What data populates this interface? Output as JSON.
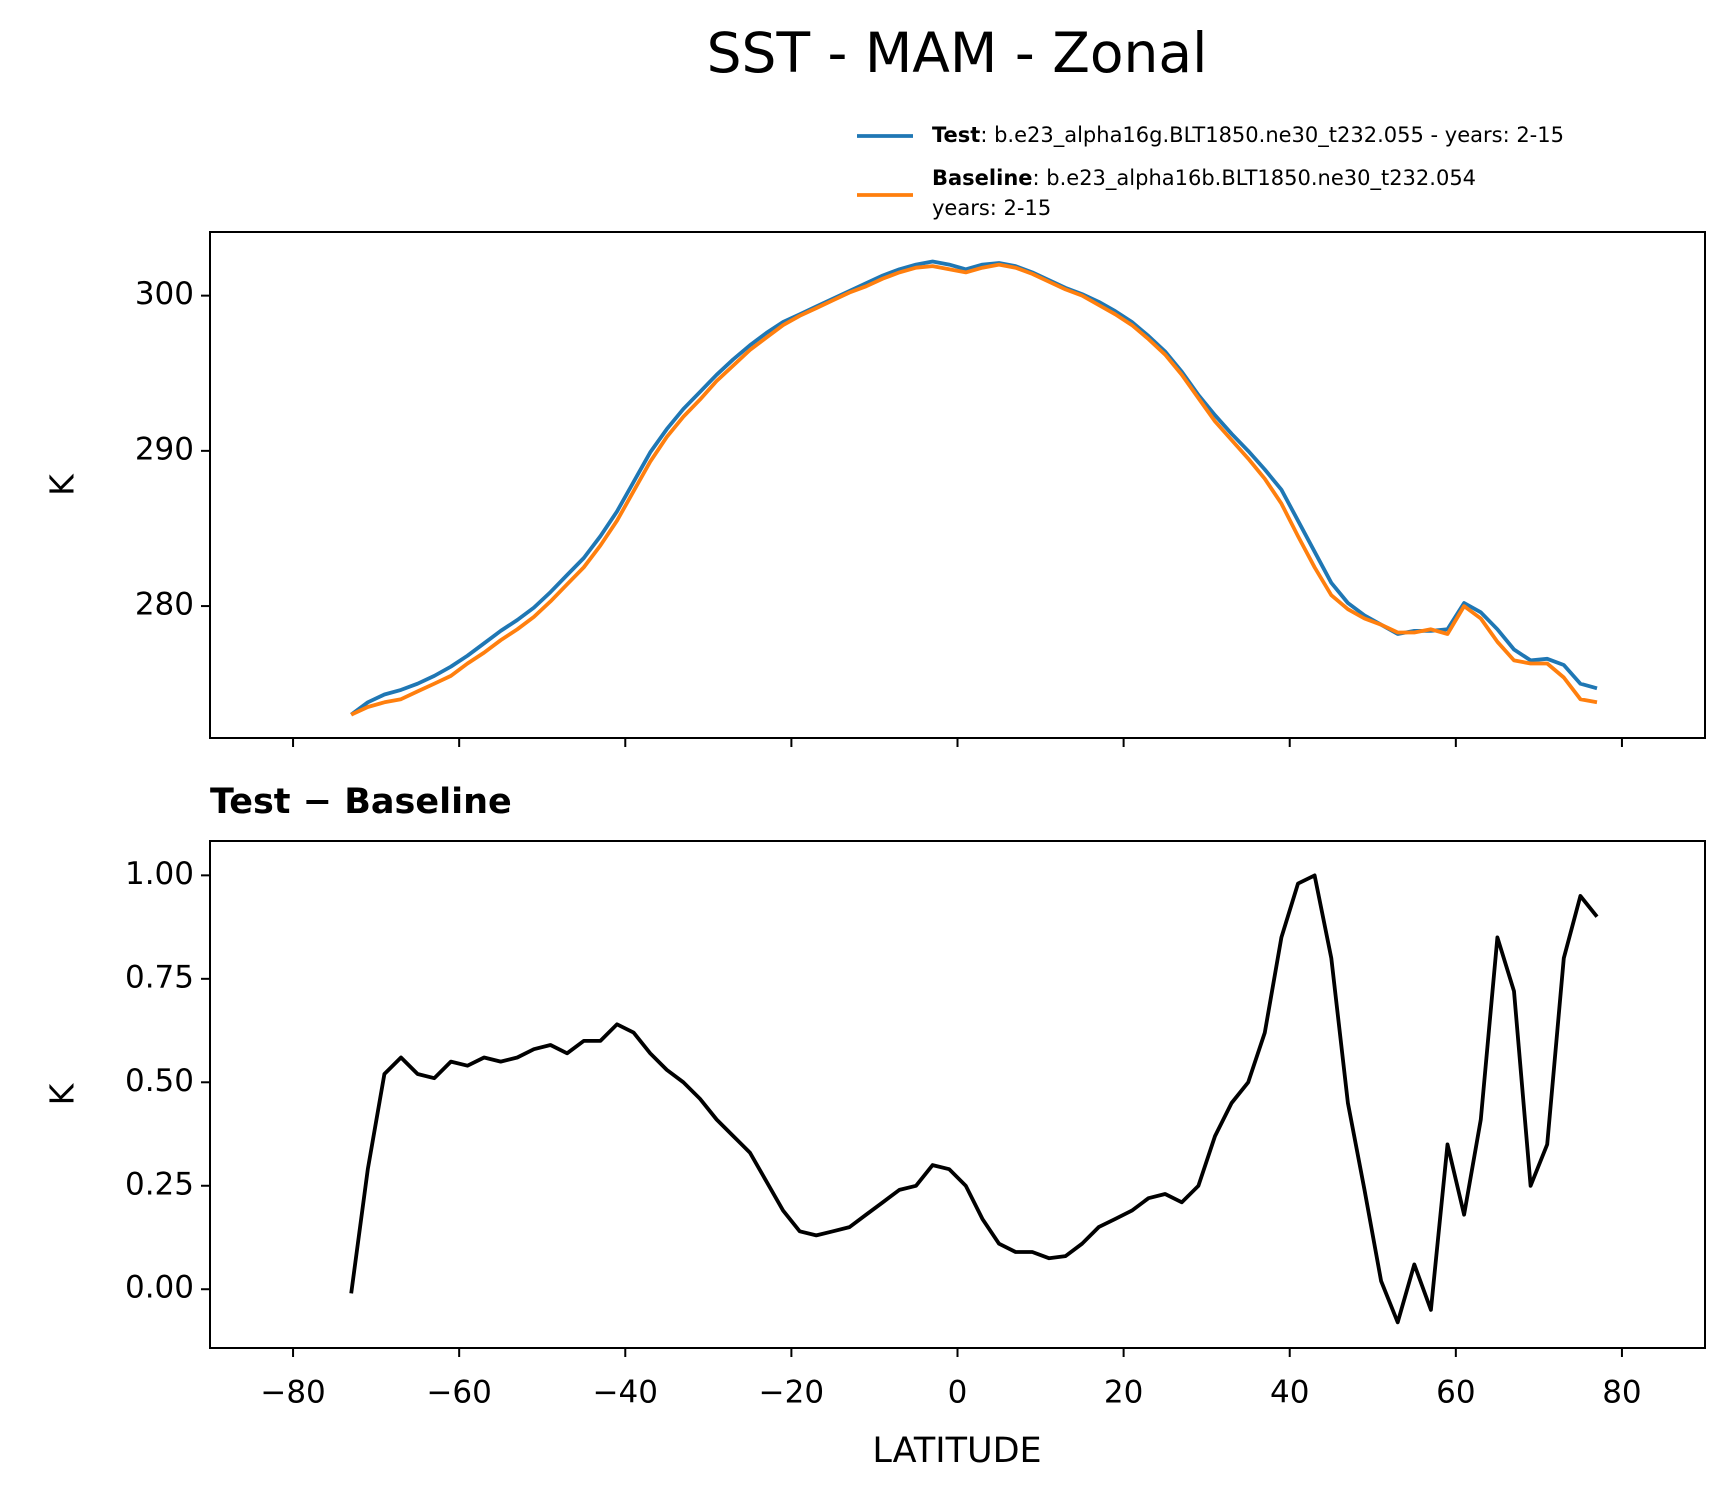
{
  "chart_data": [
    {
      "type": "line",
      "title": "SST - MAM - Zonal",
      "ylabel": "K",
      "x": [
        -73,
        -71,
        -69,
        -67,
        -65,
        -63,
        -61,
        -59,
        -57,
        -55,
        -53,
        -51,
        -49,
        -47,
        -45,
        -43,
        -41,
        -39,
        -37,
        -35,
        -33,
        -31,
        -29,
        -27,
        -25,
        -23,
        -21,
        -19,
        -17,
        -15,
        -13,
        -11,
        -9,
        -7,
        -5,
        -3,
        -1,
        1,
        3,
        5,
        7,
        9,
        11,
        13,
        15,
        17,
        19,
        21,
        23,
        25,
        27,
        29,
        31,
        33,
        35,
        37,
        39,
        41,
        43,
        45,
        47,
        49,
        51,
        53,
        55,
        57,
        59,
        61,
        63,
        65,
        67,
        69,
        71,
        73,
        75,
        77
      ],
      "series": [
        {
          "name": "Test",
          "description": [
            ": b.e23_alpha16g.BLT1850.ne30_t232.055 - years: 2-15"
          ],
          "color": "#1f77b4",
          "values": [
            273.0,
            273.8,
            274.3,
            274.6,
            275.0,
            275.5,
            276.1,
            276.8,
            277.6,
            278.4,
            279.1,
            279.9,
            280.9,
            282.0,
            283.1,
            284.5,
            286.1,
            288.0,
            289.9,
            291.4,
            292.7,
            293.8,
            294.9,
            295.9,
            296.8,
            297.6,
            298.3,
            298.8,
            299.3,
            299.8,
            300.3,
            300.8,
            301.3,
            301.7,
            302.0,
            302.2,
            302.0,
            301.7,
            302.0,
            302.1,
            301.9,
            301.5,
            301.0,
            300.5,
            300.1,
            299.6,
            299.0,
            298.3,
            297.4,
            296.4,
            295.1,
            293.6,
            292.3,
            291.1,
            290.0,
            288.8,
            287.5,
            285.5,
            283.5,
            281.5,
            280.2,
            279.4,
            278.8,
            278.2,
            278.4,
            278.4,
            278.5,
            280.2,
            279.6,
            278.5,
            277.2,
            276.5,
            276.6,
            276.2,
            275.0,
            274.7
          ]
        },
        {
          "name": "Baseline",
          "description": [
            ": b.e23_alpha16b.BLT1850.ne30_t232.054",
            "years: 2-15"
          ],
          "color": "#ff7f0e",
          "values": [
            273.0,
            273.5,
            273.8,
            274.0,
            274.5,
            275.0,
            275.5,
            276.3,
            277.0,
            277.8,
            278.5,
            279.3,
            280.3,
            281.4,
            282.5,
            283.9,
            285.5,
            287.4,
            289.3,
            290.9,
            292.2,
            293.3,
            294.5,
            295.5,
            296.5,
            297.3,
            298.1,
            298.7,
            299.2,
            299.7,
            300.2,
            300.6,
            301.1,
            301.5,
            301.8,
            301.9,
            301.7,
            301.5,
            301.8,
            302.0,
            301.8,
            301.4,
            300.9,
            300.4,
            300.0,
            299.4,
            298.8,
            298.1,
            297.2,
            296.2,
            294.9,
            293.4,
            291.9,
            290.7,
            289.5,
            288.2,
            286.6,
            284.5,
            282.5,
            280.7,
            279.8,
            279.2,
            278.8,
            278.3,
            278.3,
            278.5,
            278.2,
            280.0,
            279.2,
            277.7,
            276.5,
            276.3,
            276.3,
            275.4,
            274.0,
            273.8
          ]
        }
      ],
      "xlim": [
        -90,
        90
      ],
      "xticks": [
        -80,
        -60,
        -40,
        -20,
        0,
        20,
        40,
        60,
        80
      ],
      "ylim": [
        271.5,
        304.1
      ],
      "yticks": [
        280,
        290,
        300
      ]
    },
    {
      "type": "line",
      "subtitle": "Test − Baseline",
      "ylabel": "K",
      "xlabel": "LATITUDE",
      "x": [
        -73,
        -71,
        -69,
        -67,
        -65,
        -63,
        -61,
        -59,
        -57,
        -55,
        -53,
        -51,
        -49,
        -47,
        -45,
        -43,
        -41,
        -39,
        -37,
        -35,
        -33,
        -31,
        -29,
        -27,
        -25,
        -23,
        -21,
        -19,
        -17,
        -15,
        -13,
        -11,
        -9,
        -7,
        -5,
        -3,
        -1,
        1,
        3,
        5,
        7,
        9,
        11,
        13,
        15,
        17,
        19,
        21,
        23,
        25,
        27,
        29,
        31,
        33,
        35,
        37,
        39,
        41,
        43,
        45,
        47,
        49,
        51,
        53,
        55,
        57,
        59,
        61,
        63,
        65,
        67,
        69,
        71,
        73,
        75,
        77
      ],
      "series": [
        {
          "color": "#000000",
          "values": [
            -0.01,
            0.29,
            0.52,
            0.56,
            0.52,
            0.51,
            0.55,
            0.54,
            0.56,
            0.55,
            0.56,
            0.58,
            0.59,
            0.57,
            0.6,
            0.6,
            0.64,
            0.62,
            0.57,
            0.53,
            0.5,
            0.46,
            0.41,
            0.37,
            0.33,
            0.26,
            0.19,
            0.14,
            0.13,
            0.14,
            0.15,
            0.18,
            0.21,
            0.24,
            0.25,
            0.3,
            0.29,
            0.25,
            0.17,
            0.11,
            0.09,
            0.09,
            0.075,
            0.08,
            0.11,
            0.15,
            0.17,
            0.19,
            0.22,
            0.23,
            0.21,
            0.25,
            0.37,
            0.45,
            0.5,
            0.62,
            0.85,
            0.98,
            1.0,
            0.8,
            0.45,
            0.24,
            0.02,
            -0.08,
            0.06,
            -0.05,
            0.35,
            0.18,
            0.41,
            0.85,
            0.72,
            0.25,
            0.35,
            0.8,
            0.95,
            0.9
          ]
        }
      ],
      "xlim": [
        -90,
        90
      ],
      "xticks": [
        {
          "value": -80,
          "label": "−80"
        },
        {
          "value": -60,
          "label": "−60"
        },
        {
          "value": -40,
          "label": "−40"
        },
        {
          "value": -20,
          "label": "−20"
        },
        0,
        20,
        40,
        60,
        80
      ],
      "ylim": [
        -0.142,
        1.083
      ],
      "yticks": [
        {
          "value": 0,
          "label": "0.00"
        },
        {
          "value": 0.25,
          "label": "0.25"
        },
        {
          "value": 0.5,
          "label": "0.50"
        },
        {
          "value": 0.75,
          "label": "0.75"
        },
        {
          "value": 1,
          "label": "1.00"
        }
      ]
    }
  ]
}
